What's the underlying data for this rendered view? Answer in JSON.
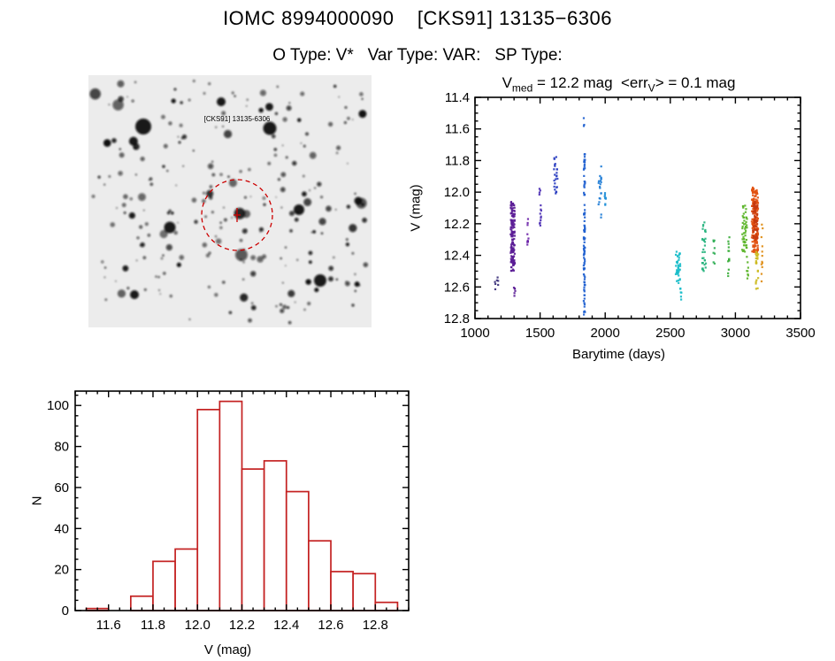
{
  "page": {
    "title": "IOMC 8994000090    [CKS91] 13135−6306",
    "subtitle": "O Type: V*   Var Type: VAR:   SP Type:"
  },
  "finder": {
    "label": "[CKS91] 13135-6306",
    "marker_color": "#cc0000",
    "background": "#ececec"
  },
  "chart_data": [
    {
      "id": "lightcurve",
      "type": "scatter",
      "title": {
        "p1": "V",
        "s1": "med",
        "p2": " = 12.2 mag  <err",
        "s2": "V",
        "p3": "> = 0.1 mag"
      },
      "xlabel": "Barytime (days)",
      "ylabel": "V (mag)",
      "xlim": [
        1000,
        3500
      ],
      "ylim": [
        11.4,
        12.8
      ],
      "y_inverted": true,
      "x_ticks": [
        "1000",
        "1500",
        "2000",
        "2500",
        "3000",
        "3500"
      ],
      "y_ticks": [
        "11.4",
        "11.6",
        "11.8",
        "12.0",
        "12.2",
        "12.4",
        "12.6",
        "12.8"
      ],
      "grid": false,
      "clusters": [
        {
          "x": 1165,
          "dx": 18,
          "y1": 12.5,
          "y2": 12.63,
          "n": 7,
          "c": "#3a2f7a"
        },
        {
          "x": 1290,
          "dx": 16,
          "y1": 12.06,
          "y2": 12.5,
          "n": 140,
          "c": "#5b1d96"
        },
        {
          "x": 1302,
          "dx": 8,
          "y1": 12.55,
          "y2": 12.66,
          "n": 6,
          "c": "#5b1d96"
        },
        {
          "x": 1405,
          "dx": 6,
          "y1": 12.14,
          "y2": 12.34,
          "n": 11,
          "c": "#6b23a8"
        },
        {
          "x": 1502,
          "dx": 8,
          "y1": 11.97,
          "y2": 12.24,
          "n": 14,
          "c": "#4c2fb4"
        },
        {
          "x": 1620,
          "dx": 14,
          "y1": 11.77,
          "y2": 12.02,
          "n": 24,
          "c": "#2a3ec0"
        },
        {
          "x": 1838,
          "dx": 4,
          "y1": 11.52,
          "y2": 11.6,
          "n": 3,
          "c": "#1d5ecf"
        },
        {
          "x": 1840,
          "dx": 5,
          "y1": 11.76,
          "y2": 12.78,
          "n": 95,
          "c": "#1d5ecf"
        },
        {
          "x": 1958,
          "dx": 12,
          "y1": 11.83,
          "y2": 12.18,
          "n": 20,
          "c": "#1f7dd6"
        },
        {
          "x": 2000,
          "dx": 5,
          "y1": 11.93,
          "y2": 12.1,
          "n": 8,
          "c": "#1f8fd8"
        },
        {
          "x": 2560,
          "dx": 18,
          "y1": 12.37,
          "y2": 12.58,
          "n": 38,
          "c": "#17bcc9"
        },
        {
          "x": 2585,
          "dx": 8,
          "y1": 12.6,
          "y2": 12.68,
          "n": 6,
          "c": "#17bcc9"
        },
        {
          "x": 2760,
          "dx": 14,
          "y1": 12.17,
          "y2": 12.5,
          "n": 32,
          "c": "#26b37e"
        },
        {
          "x": 2835,
          "dx": 6,
          "y1": 12.3,
          "y2": 12.46,
          "n": 8,
          "c": "#2fae55"
        },
        {
          "x": 2950,
          "dx": 7,
          "y1": 12.24,
          "y2": 12.55,
          "n": 14,
          "c": "#3aad3a"
        },
        {
          "x": 3070,
          "dx": 20,
          "y1": 12.08,
          "y2": 12.38,
          "n": 48,
          "c": "#5ab428"
        },
        {
          "x": 3092,
          "dx": 8,
          "y1": 12.4,
          "y2": 12.56,
          "n": 8,
          "c": "#5ab428"
        },
        {
          "x": 3150,
          "dx": 25,
          "y1": 11.97,
          "y2": 12.38,
          "n": 170,
          "c": "#e2500f"
        },
        {
          "x": 3152,
          "dx": 18,
          "y1": 12.05,
          "y2": 12.3,
          "n": 60,
          "c": "#c63a0e"
        },
        {
          "x": 3165,
          "dx": 10,
          "y1": 12.37,
          "y2": 12.62,
          "n": 22,
          "c": "#ccba1c"
        },
        {
          "x": 3205,
          "dx": 5,
          "y1": 12.15,
          "y2": 12.57,
          "n": 12,
          "c": "#de8c12"
        }
      ]
    },
    {
      "id": "histogram",
      "type": "bar",
      "xlabel": "V (mag)",
      "ylabel": "N",
      "xlim": [
        11.45,
        12.95
      ],
      "ylim": [
        0,
        107
      ],
      "bin_width": 0.1,
      "centers": [
        11.55,
        11.65,
        11.75,
        11.85,
        11.95,
        12.05,
        12.15,
        12.25,
        12.35,
        12.45,
        12.55,
        12.65,
        12.75,
        12.85
      ],
      "values": [
        1,
        0,
        7,
        24,
        30,
        98,
        102,
        69,
        73,
        58,
        34,
        19,
        18,
        4
      ],
      "x_ticks": [
        "11.6",
        "11.8",
        "12.0",
        "12.2",
        "12.4",
        "12.6",
        "12.8"
      ],
      "y_ticks": [
        "0",
        "20",
        "40",
        "60",
        "80",
        "100"
      ],
      "color": "#c42121",
      "grid": false
    }
  ]
}
